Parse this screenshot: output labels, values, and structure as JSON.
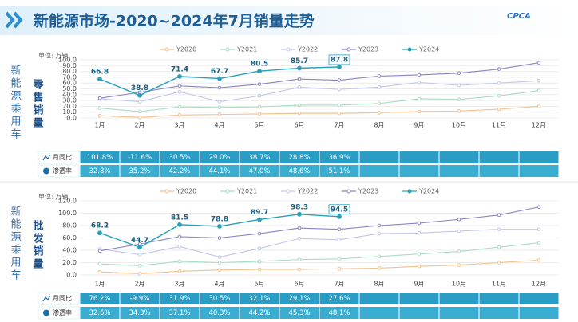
{
  "header": {
    "title": "新能源市场-2020~2024年7月销量走势",
    "logo": "CPCA"
  },
  "chart_data": [
    {
      "type": "line",
      "side_label": "新能源乘用车",
      "title": "零售销量",
      "unit": "单位: 万辆",
      "legend": "top",
      "categories": [
        "1月",
        "2月",
        "3月",
        "4月",
        "5月",
        "6月",
        "7月",
        "8月",
        "9月",
        "10月",
        "11月",
        "12月"
      ],
      "ylim": [
        0,
        100
      ],
      "yticks": [
        {
          "value": 0,
          "label": "0.0"
        },
        {
          "value": 10,
          "label": "10.0"
        },
        {
          "value": 20,
          "label": "20.0"
        },
        {
          "value": 30,
          "label": "30.0"
        },
        {
          "value": 40,
          "label": "40.0"
        },
        {
          "value": 50,
          "label": "50.0"
        },
        {
          "value": 60,
          "label": "60.0"
        },
        {
          "value": 70,
          "label": "70.0"
        },
        {
          "value": 80,
          "label": "80.0"
        },
        {
          "value": 90,
          "label": "90.0"
        },
        {
          "value": 100,
          "label": "100.0"
        }
      ],
      "series": [
        {
          "name": "Y2020",
          "color": "#f3c08e",
          "values": [
            4,
            1,
            5,
            6,
            7,
            8,
            8,
            9,
            11,
            12,
            15,
            20
          ]
        },
        {
          "name": "Y2021",
          "color": "#a9dcc2",
          "values": [
            17,
            11,
            19,
            18,
            19,
            22,
            22,
            25,
            33,
            32,
            38,
            47
          ]
        },
        {
          "name": "Y2022",
          "color": "#c2c6ea",
          "values": [
            33,
            28,
            45,
            28,
            38,
            53,
            49,
            53,
            61,
            56,
            60,
            64
          ]
        },
        {
          "name": "Y2023",
          "color": "#8a84c4",
          "values": [
            34,
            44,
            55,
            52,
            58,
            67,
            65,
            72,
            74,
            77,
            84,
            95
          ]
        },
        {
          "name": "Y2024",
          "color": "#2a9fb8",
          "values": [
            66.8,
            38.8,
            71.4,
            67.7,
            80.5,
            85.7,
            87.8,
            null,
            null,
            null,
            null,
            null
          ]
        }
      ],
      "table": [
        {
          "label": "月同比",
          "cells": [
            "101.8%",
            "-11.6%",
            "30.5%",
            "29.0%",
            "38.7%",
            "28.8%",
            "36.9%"
          ]
        },
        {
          "label": "渗透率",
          "cells": [
            "32.8%",
            "35.2%",
            "42.2%",
            "44.1%",
            "47.0%",
            "48.6%",
            "51.1%"
          ]
        }
      ]
    },
    {
      "type": "line",
      "side_label": "新能源乘用车",
      "title": "批发销量",
      "unit": "单位: 万辆",
      "legend": "top",
      "categories": [
        "1月",
        "2月",
        "3月",
        "4月",
        "5月",
        "6月",
        "7月",
        "8月",
        "9月",
        "10月",
        "11月",
        "12月"
      ],
      "ylim": [
        0,
        120
      ],
      "yticks": [
        {
          "value": 0,
          "label": "0.0"
        },
        {
          "value": 20,
          "label": "20.0"
        },
        {
          "value": 40,
          "label": "40.0"
        },
        {
          "value": 60,
          "label": "60.0"
        },
        {
          "value": 80,
          "label": "80.0"
        },
        {
          "value": 100,
          "label": "100.0"
        },
        {
          "value": 120,
          "label": "120.0"
        }
      ],
      "series": [
        {
          "name": "Y2020",
          "color": "#f3c08e",
          "values": [
            5,
            2,
            6,
            8,
            9,
            9,
            10,
            11,
            14,
            16,
            20,
            24
          ]
        },
        {
          "name": "Y2021",
          "color": "#a9dcc2",
          "values": [
            18,
            15,
            22,
            20,
            22,
            25,
            26,
            30,
            34,
            38,
            45,
            52
          ]
        },
        {
          "name": "Y2022",
          "color": "#c2c6ea",
          "values": [
            42,
            33,
            46,
            29,
            43,
            59,
            57,
            67,
            68,
            71,
            74,
            74
          ]
        },
        {
          "name": "Y2023",
          "color": "#8a84c4",
          "values": [
            39,
            50,
            62,
            60,
            67,
            76,
            74,
            80,
            84,
            90,
            97,
            110
          ]
        },
        {
          "name": "Y2024",
          "color": "#2a9fb8",
          "values": [
            68.2,
            44.7,
            81.5,
            78.8,
            89.7,
            98.3,
            94.5,
            null,
            null,
            null,
            null,
            null
          ]
        }
      ],
      "table": [
        {
          "label": "月同比",
          "cells": [
            "76.2%",
            "-9.9%",
            "31.9%",
            "30.5%",
            "32.1%",
            "29.1%",
            "27.6%"
          ]
        },
        {
          "label": "渗透率",
          "cells": [
            "32.6%",
            "34.3%",
            "37.1%",
            "40.3%",
            "44.2%",
            "45.3%",
            "48.1%"
          ]
        }
      ]
    }
  ]
}
